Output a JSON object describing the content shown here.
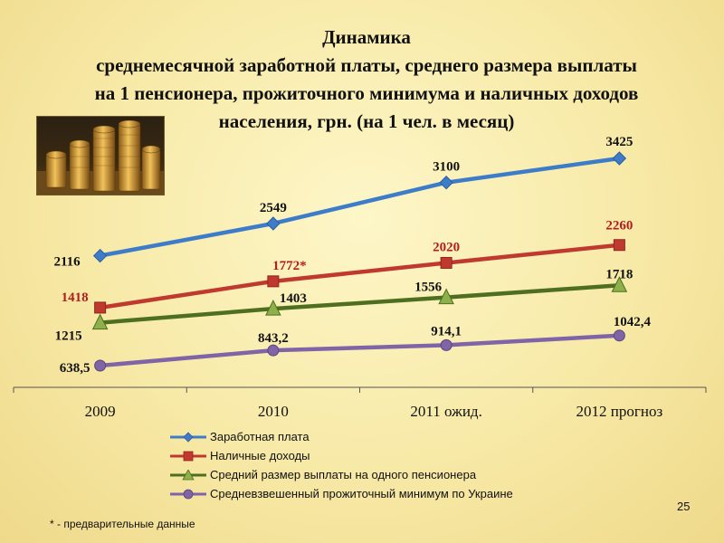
{
  "title_lines": [
    "Динамика",
    "среднемесячной заработной платы, среднего размера выплаты",
    "на 1 пенсионера, прожиточного минимума и наличных  доходов",
    "населения, грн. (на 1 чел. в месяц)"
  ],
  "chart_data": {
    "type": "line",
    "categories": [
      "2009",
      "2010",
      "2011 ожид.",
      "2012 прогноз"
    ],
    "series": [
      {
        "name": "Заработная плата",
        "values": [
          2116,
          2549,
          3100,
          3425
        ],
        "labels": [
          "2116",
          "2549",
          "3100",
          "3425"
        ],
        "color": "#3d7cc9",
        "label_color": "#111111",
        "marker": "diamond"
      },
      {
        "name": "Наличные доходы",
        "values": [
          1418,
          1772,
          2020,
          2260
        ],
        "labels": [
          "1418",
          "1772*",
          "2020",
          "2260"
        ],
        "color": "#c0392f",
        "label_color": "#b21e1e",
        "marker": "square"
      },
      {
        "name": "Средний размер выплаты  на одного пенсионера",
        "values": [
          1215,
          1403,
          1556,
          1718
        ],
        "labels": [
          "1215",
          "1403",
          "1556",
          "1718"
        ],
        "color": "#4f6f20",
        "label_color": "#111111",
        "marker": "triangle"
      },
      {
        "name": "Средневзвешенный прожиточный минимум по Украине",
        "values": [
          638.5,
          843.2,
          914.1,
          1042.4
        ],
        "labels": [
          "638,5",
          "843,2",
          "914,1",
          "1042,4"
        ],
        "color": "#8064a8",
        "label_color": "#111111",
        "marker": "circle"
      }
    ],
    "grid": false,
    "legend": "bottom"
  },
  "footnote": "* - предварительные данные",
  "page_number": "25",
  "image": {
    "icon": "coins-photo"
  }
}
